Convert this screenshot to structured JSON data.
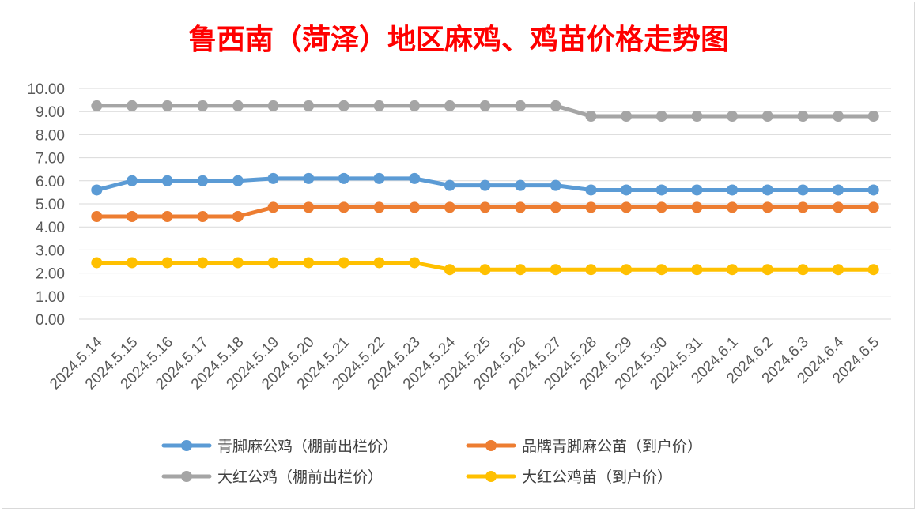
{
  "chart_data": {
    "type": "line",
    "title": "鲁西南（菏泽）地区麻鸡、鸡苗价格走势图",
    "xlabel": "",
    "ylabel": "",
    "ylim": [
      0,
      10
    ],
    "ytick_labels": [
      "0.00",
      "1.00",
      "2.00",
      "3.00",
      "4.00",
      "5.00",
      "6.00",
      "7.00",
      "8.00",
      "9.00",
      "10.00"
    ],
    "grid": true,
    "legend_position": "bottom",
    "categories": [
      "2024.5.14",
      "2024.5.15",
      "2024.5.16",
      "2024.5.17",
      "2024.5.18",
      "2024.5.19",
      "2024.5.20",
      "2024.5.21",
      "2024.5.22",
      "2024.5.23",
      "2024.5.24",
      "2024.5.25",
      "2024.5.26",
      "2024.5.27",
      "2024.5.28",
      "2024.5.29",
      "2024.5.30",
      "2024.5.31",
      "2024.6.1",
      "2024.6.2",
      "2024.6.3",
      "2024.6.4",
      "2024.6.5"
    ],
    "series": [
      {
        "name": "青脚麻公鸡（棚前出栏价）",
        "color": "#5b9bd5",
        "values": [
          5.6,
          6.0,
          6.0,
          6.0,
          6.0,
          6.1,
          6.1,
          6.1,
          6.1,
          6.1,
          5.8,
          5.8,
          5.8,
          5.8,
          5.6,
          5.6,
          5.6,
          5.6,
          5.6,
          5.6,
          5.6,
          5.6,
          5.6
        ]
      },
      {
        "name": "品牌青脚麻公苗（到户价）",
        "color": "#ed7d31",
        "values": [
          4.45,
          4.45,
          4.45,
          4.45,
          4.45,
          4.85,
          4.85,
          4.85,
          4.85,
          4.85,
          4.85,
          4.85,
          4.85,
          4.85,
          4.85,
          4.85,
          4.85,
          4.85,
          4.85,
          4.85,
          4.85,
          4.85,
          4.85
        ]
      },
      {
        "name": "大红公鸡（棚前出栏价）",
        "color": "#a5a5a5",
        "values": [
          9.25,
          9.25,
          9.25,
          9.25,
          9.25,
          9.25,
          9.25,
          9.25,
          9.25,
          9.25,
          9.25,
          9.25,
          9.25,
          9.25,
          8.8,
          8.8,
          8.8,
          8.8,
          8.8,
          8.8,
          8.8,
          8.8,
          8.8
        ]
      },
      {
        "name": "大红公鸡苗（到户价）",
        "color": "#ffc000",
        "values": [
          2.45,
          2.45,
          2.45,
          2.45,
          2.45,
          2.45,
          2.45,
          2.45,
          2.45,
          2.45,
          2.15,
          2.15,
          2.15,
          2.15,
          2.15,
          2.15,
          2.15,
          2.15,
          2.15,
          2.15,
          2.15,
          2.15,
          2.15
        ]
      }
    ]
  }
}
